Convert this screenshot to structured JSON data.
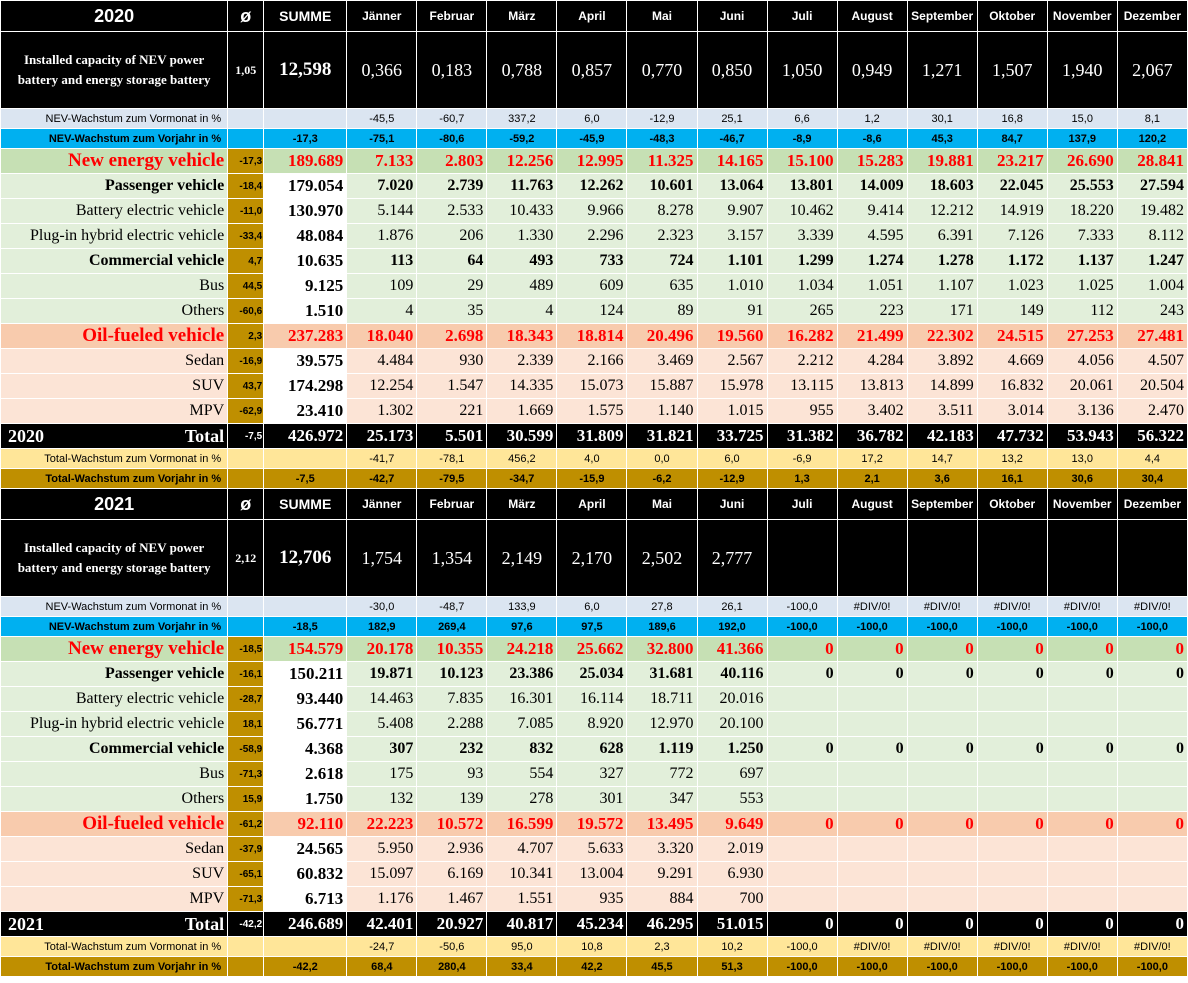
{
  "months": [
    "Jänner",
    "Februar",
    "März",
    "April",
    "Mai",
    "Juni",
    "Juli",
    "August",
    "September",
    "Oktober",
    "November",
    "Dezember"
  ],
  "avg_symbol": "ø",
  "sum_label": "SUMME",
  "labels": {
    "capacity": "Installed capacity of NEV power battery and energy storage battery",
    "nev_mom": "NEV-Wachstum zum Vormonat in %",
    "nev_yoy": "NEV-Wachstum zum Vorjahr in %",
    "nev": "New energy vehicle",
    "passenger": "Passenger vehicle",
    "bev": "Battery electric vehicle",
    "phev": "Plug-in hybrid electric vehicle",
    "commercial": "Commercial vehicle",
    "bus": "Bus",
    "others": "Others",
    "oil": "Oil-fueled vehicle",
    "sedan": "Sedan",
    "suv": "SUV",
    "mpv": "MPV",
    "total": "Total",
    "tot_mom": "Total-Wachstum zum Vormonat in %",
    "tot_yoy": "Total-Wachstum zum Vorjahr in %"
  },
  "blocks": [
    {
      "year": "2020",
      "capacity": {
        "avg": "1,05",
        "sum": "12,598",
        "m": [
          "0,366",
          "0,183",
          "0,788",
          "0,857",
          "0,770",
          "0,850",
          "1,050",
          "0,949",
          "1,271",
          "1,507",
          "1,940",
          "2,067"
        ]
      },
      "nev_mom": {
        "avg": "",
        "sum": "",
        "m": [
          "-45,5",
          "-60,7",
          "337,2",
          "6,0",
          "-12,9",
          "25,1",
          "6,6",
          "1,2",
          "30,1",
          "16,8",
          "15,0",
          "8,1"
        ]
      },
      "nev_yoy": {
        "avg": "",
        "sum": "-17,3",
        "m": [
          "-75,1",
          "-80,6",
          "-59,2",
          "-45,9",
          "-48,3",
          "-46,7",
          "-8,9",
          "-8,6",
          "45,3",
          "84,7",
          "137,9",
          "120,2"
        ]
      },
      "nev": {
        "avg": "-17,3",
        "sum": "189.689",
        "m": [
          "7.133",
          "2.803",
          "12.256",
          "12.995",
          "11.325",
          "14.165",
          "15.100",
          "15.283",
          "19.881",
          "23.217",
          "26.690",
          "28.841"
        ]
      },
      "passenger": {
        "avg": "-18,4",
        "sum": "179.054",
        "m": [
          "7.020",
          "2.739",
          "11.763",
          "12.262",
          "10.601",
          "13.064",
          "13.801",
          "14.009",
          "18.603",
          "22.045",
          "25.553",
          "27.594"
        ]
      },
      "bev": {
        "avg": "-11,0",
        "sum": "130.970",
        "m": [
          "5.144",
          "2.533",
          "10.433",
          "9.966",
          "8.278",
          "9.907",
          "10.462",
          "9.414",
          "12.212",
          "14.919",
          "18.220",
          "19.482"
        ]
      },
      "phev": {
        "avg": "-33,4",
        "sum": "48.084",
        "m": [
          "1.876",
          "206",
          "1.330",
          "2.296",
          "2.323",
          "3.157",
          "3.339",
          "4.595",
          "6.391",
          "7.126",
          "7.333",
          "8.112"
        ]
      },
      "commercial": {
        "avg": "4,7",
        "sum": "10.635",
        "m": [
          "113",
          "64",
          "493",
          "733",
          "724",
          "1.101",
          "1.299",
          "1.274",
          "1.278",
          "1.172",
          "1.137",
          "1.247"
        ]
      },
      "bus": {
        "avg": "44,5",
        "sum": "9.125",
        "m": [
          "109",
          "29",
          "489",
          "609",
          "635",
          "1.010",
          "1.034",
          "1.051",
          "1.107",
          "1.023",
          "1.025",
          "1.004"
        ]
      },
      "others": {
        "avg": "-60,6",
        "sum": "1.510",
        "m": [
          "4",
          "35",
          "4",
          "124",
          "89",
          "91",
          "265",
          "223",
          "171",
          "149",
          "112",
          "243"
        ]
      },
      "oil": {
        "avg": "2,3",
        "sum": "237.283",
        "m": [
          "18.040",
          "2.698",
          "18.343",
          "18.814",
          "20.496",
          "19.560",
          "16.282",
          "21.499",
          "22.302",
          "24.515",
          "27.253",
          "27.481"
        ]
      },
      "sedan": {
        "avg": "-16,9",
        "sum": "39.575",
        "m": [
          "4.484",
          "930",
          "2.339",
          "2.166",
          "3.469",
          "2.567",
          "2.212",
          "4.284",
          "3.892",
          "4.669",
          "4.056",
          "4.507"
        ]
      },
      "suv": {
        "avg": "43,7",
        "sum": "174.298",
        "m": [
          "12.254",
          "1.547",
          "14.335",
          "15.073",
          "15.887",
          "15.978",
          "13.115",
          "13.813",
          "14.899",
          "16.832",
          "20.061",
          "20.504"
        ]
      },
      "mpv": {
        "avg": "-62,9",
        "sum": "23.410",
        "m": [
          "1.302",
          "221",
          "1.669",
          "1.575",
          "1.140",
          "1.015",
          "955",
          "3.402",
          "3.511",
          "3.014",
          "3.136",
          "2.470"
        ]
      },
      "total": {
        "avg": "-7,5",
        "sum": "426.972",
        "m": [
          "25.173",
          "5.501",
          "30.599",
          "31.809",
          "31.821",
          "33.725",
          "31.382",
          "36.782",
          "42.183",
          "47.732",
          "53.943",
          "56.322"
        ]
      },
      "tot_mom": {
        "avg": "",
        "sum": "",
        "m": [
          "-41,7",
          "-78,1",
          "456,2",
          "4,0",
          "0,0",
          "6,0",
          "-6,9",
          "17,2",
          "14,7",
          "13,2",
          "13,0",
          "4,4"
        ]
      },
      "tot_yoy": {
        "avg": "",
        "sum": "-7,5",
        "m": [
          "-42,7",
          "-79,5",
          "-34,7",
          "-15,9",
          "-6,2",
          "-12,9",
          "1,3",
          "2,1",
          "3,6",
          "16,1",
          "30,6",
          "30,4"
        ]
      }
    },
    {
      "year": "2021",
      "capacity": {
        "avg": "2,12",
        "sum": "12,706",
        "m": [
          "1,754",
          "1,354",
          "2,149",
          "2,170",
          "2,502",
          "2,777",
          "",
          "",
          "",
          "",
          "",
          ""
        ]
      },
      "nev_mom": {
        "avg": "",
        "sum": "",
        "m": [
          "-30,0",
          "-48,7",
          "133,9",
          "6,0",
          "27,8",
          "26,1",
          "-100,0",
          "#DIV/0!",
          "#DIV/0!",
          "#DIV/0!",
          "#DIV/0!",
          "#DIV/0!"
        ]
      },
      "nev_yoy": {
        "avg": "",
        "sum": "-18,5",
        "m": [
          "182,9",
          "269,4",
          "97,6",
          "97,5",
          "189,6",
          "192,0",
          "-100,0",
          "-100,0",
          "-100,0",
          "-100,0",
          "-100,0",
          "-100,0"
        ]
      },
      "nev": {
        "avg": "-18,5",
        "sum": "154.579",
        "m": [
          "20.178",
          "10.355",
          "24.218",
          "25.662",
          "32.800",
          "41.366",
          "0",
          "0",
          "0",
          "0",
          "0",
          "0"
        ]
      },
      "passenger": {
        "avg": "-16,1",
        "sum": "150.211",
        "m": [
          "19.871",
          "10.123",
          "23.386",
          "25.034",
          "31.681",
          "40.116",
          "0",
          "0",
          "0",
          "0",
          "0",
          "0"
        ]
      },
      "bev": {
        "avg": "-28,7",
        "sum": "93.440",
        "m": [
          "14.463",
          "7.835",
          "16.301",
          "16.114",
          "18.711",
          "20.016",
          "",
          "",
          "",
          "",
          "",
          ""
        ]
      },
      "phev": {
        "avg": "18,1",
        "sum": "56.771",
        "m": [
          "5.408",
          "2.288",
          "7.085",
          "8.920",
          "12.970",
          "20.100",
          "",
          "",
          "",
          "",
          "",
          ""
        ]
      },
      "commercial": {
        "avg": "-58,9",
        "sum": "4.368",
        "m": [
          "307",
          "232",
          "832",
          "628",
          "1.119",
          "1.250",
          "0",
          "0",
          "0",
          "0",
          "0",
          "0"
        ]
      },
      "bus": {
        "avg": "-71,3",
        "sum": "2.618",
        "m": [
          "175",
          "93",
          "554",
          "327",
          "772",
          "697",
          "",
          "",
          "",
          "",
          "",
          ""
        ]
      },
      "others": {
        "avg": "15,9",
        "sum": "1.750",
        "m": [
          "132",
          "139",
          "278",
          "301",
          "347",
          "553",
          "",
          "",
          "",
          "",
          "",
          ""
        ]
      },
      "oil": {
        "avg": "-61,2",
        "sum": "92.110",
        "m": [
          "22.223",
          "10.572",
          "16.599",
          "19.572",
          "13.495",
          "9.649",
          "0",
          "0",
          "0",
          "0",
          "0",
          "0"
        ]
      },
      "sedan": {
        "avg": "-37,9",
        "sum": "24.565",
        "m": [
          "5.950",
          "2.936",
          "4.707",
          "5.633",
          "3.320",
          "2.019",
          "",
          "",
          "",
          "",
          "",
          ""
        ]
      },
      "suv": {
        "avg": "-65,1",
        "sum": "60.832",
        "m": [
          "15.097",
          "6.169",
          "10.341",
          "13.004",
          "9.291",
          "6.930",
          "",
          "",
          "",
          "",
          "",
          ""
        ]
      },
      "mpv": {
        "avg": "-71,3",
        "sum": "6.713",
        "m": [
          "1.176",
          "1.467",
          "1.551",
          "935",
          "884",
          "700",
          "",
          "",
          "",
          "",
          "",
          ""
        ]
      },
      "total": {
        "avg": "-42,2",
        "sum": "246.689",
        "m": [
          "42.401",
          "20.927",
          "40.817",
          "45.234",
          "46.295",
          "51.015",
          "0",
          "0",
          "0",
          "0",
          "0",
          "0"
        ]
      },
      "tot_mom": {
        "avg": "",
        "sum": "",
        "m": [
          "-24,7",
          "-50,6",
          "95,0",
          "10,8",
          "2,3",
          "10,2",
          "-100,0",
          "#DIV/0!",
          "#DIV/0!",
          "#DIV/0!",
          "#DIV/0!",
          "#DIV/0!"
        ]
      },
      "tot_yoy": {
        "avg": "",
        "sum": "-42,2",
        "m": [
          "68,4",
          "280,4",
          "33,4",
          "42,2",
          "45,5",
          "51,3",
          "-100,0",
          "-100,0",
          "-100,0",
          "-100,0",
          "-100,0",
          "-100,0"
        ]
      }
    }
  ]
}
